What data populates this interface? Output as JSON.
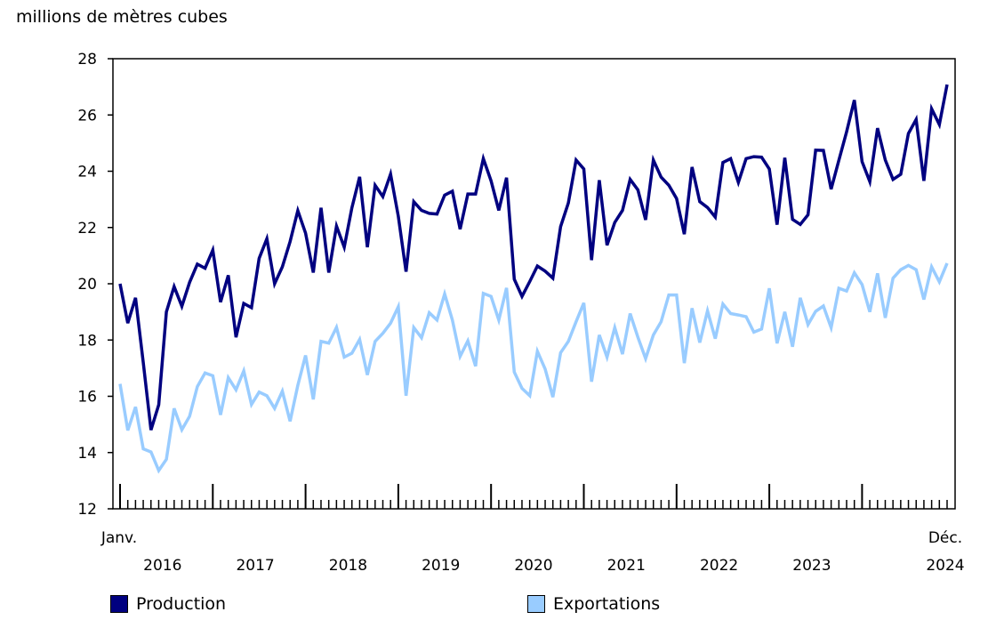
{
  "chart_data": {
    "type": "line",
    "ylabel": "millions de mètres cubes",
    "ylim": [
      12,
      28
    ],
    "yticks": [
      12,
      14,
      16,
      18,
      20,
      22,
      24,
      26,
      28
    ],
    "x_start_label": "Janv.",
    "x_end_label": "Déc.",
    "years": [
      "2016",
      "2017",
      "2018",
      "2019",
      "2020",
      "2021",
      "2022",
      "2023",
      "2024"
    ],
    "grid": false,
    "legend_placement": "bottom",
    "series": [
      {
        "name": "Production",
        "color": "#000080",
        "values": [
          20.0,
          18.6,
          19.5,
          17.2,
          14.8,
          15.7,
          19.0,
          19.9,
          19.2,
          20.05,
          20.7,
          20.55,
          21.2,
          19.35,
          20.3,
          18.1,
          19.3,
          19.15,
          20.9,
          21.6,
          20.0,
          20.6,
          21.5,
          22.6,
          21.8,
          20.4,
          22.7,
          20.4,
          22.05,
          21.3,
          22.7,
          23.8,
          21.3,
          23.5,
          23.1,
          23.9,
          22.4,
          20.43,
          22.92,
          22.61,
          22.5,
          22.48,
          23.15,
          23.29,
          21.94,
          23.19,
          23.19,
          24.45,
          23.66,
          22.61,
          23.77,
          20.16,
          19.55,
          20.08,
          20.63,
          20.45,
          20.2,
          22.03,
          22.87,
          24.4,
          24.08,
          20.84,
          23.68,
          21.37,
          22.18,
          22.61,
          23.71,
          23.34,
          22.27,
          24.4,
          23.79,
          23.5,
          23.03,
          21.76,
          24.15,
          22.92,
          22.71,
          22.37,
          24.31,
          24.45,
          23.6,
          24.45,
          24.52,
          24.5,
          24.08,
          22.1,
          24.48,
          22.29,
          22.11,
          22.45,
          24.75,
          24.74,
          23.36,
          24.39,
          25.4,
          26.53,
          24.34,
          23.63,
          25.53,
          24.4,
          23.71,
          23.89,
          25.34,
          25.84,
          23.66,
          26.22,
          25.66,
          27.08
        ]
      },
      {
        "name": "Exportations",
        "color": "#99ccff",
        "values": [
          16.44,
          14.79,
          15.62,
          14.13,
          14.02,
          13.36,
          13.76,
          15.57,
          14.81,
          15.29,
          16.34,
          16.83,
          16.73,
          15.34,
          16.66,
          16.23,
          16.9,
          15.71,
          16.15,
          16.02,
          15.57,
          16.18,
          15.11,
          16.39,
          17.45,
          15.89,
          17.95,
          17.89,
          18.45,
          17.39,
          17.53,
          18.02,
          16.76,
          17.95,
          18.24,
          18.6,
          19.18,
          16.02,
          18.44,
          18.08,
          18.97,
          18.71,
          19.64,
          18.71,
          17.42,
          17.97,
          17.07,
          19.66,
          19.55,
          18.71,
          19.85,
          16.86,
          16.28,
          16.02,
          17.6,
          16.97,
          15.97,
          17.55,
          17.95,
          18.65,
          19.32,
          16.52,
          18.18,
          17.39,
          18.44,
          17.5,
          18.94,
          18.1,
          17.34,
          18.18,
          18.65,
          19.6,
          19.6,
          17.18,
          19.13,
          17.91,
          19.04,
          18.05,
          19.28,
          18.94,
          18.89,
          18.83,
          18.28,
          18.39,
          19.84,
          17.88,
          19.0,
          17.76,
          19.5,
          18.55,
          19.02,
          19.21,
          18.44,
          19.84,
          19.74,
          20.39,
          19.97,
          19.0,
          20.37,
          18.79,
          20.2,
          20.5,
          20.65,
          20.5,
          19.44,
          20.6,
          20.07,
          20.73
        ]
      }
    ]
  }
}
